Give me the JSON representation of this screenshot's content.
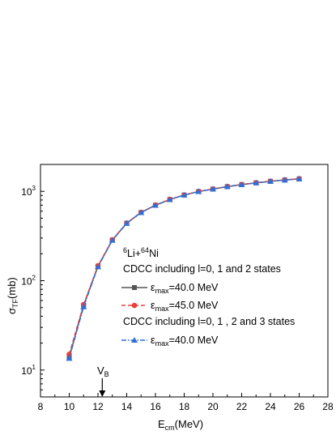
{
  "chart_data": {
    "type": "line",
    "xlabel_main": "E",
    "xlabel_sub": "cm",
    "xlabel_unit": "(MeV)",
    "ylabel_main": "σ",
    "ylabel_sub": "TF",
    "ylabel_unit": "(mb)",
    "xlim": [
      8,
      28
    ],
    "ylim": [
      5,
      2000
    ],
    "yscale": "log",
    "x_ticks": [
      8,
      10,
      12,
      14,
      16,
      18,
      20,
      22,
      24,
      26,
      28
    ],
    "y_ticks": [
      {
        "value": 10,
        "base": "10",
        "exp": "1"
      },
      {
        "value": 100,
        "base": "10",
        "exp": "2"
      },
      {
        "value": 1000,
        "base": "10",
        "exp": "3"
      }
    ],
    "annotation": {
      "label_main": "V",
      "label_sub": "B",
      "x": 12.3
    },
    "legend": {
      "placement": "center-right",
      "title_parts": [
        "6",
        "Li+",
        "64",
        "Ni"
      ],
      "group1": "CDCC including l=0, 1 and 2 states",
      "group2": "CDCC including l=0, 1 , 2 and 3 states",
      "emax_symbol": "ε",
      "emax_sub": "max",
      "entry_values": [
        "=40.0 MeV",
        "=45.0 MeV",
        "=40.0 MeV"
      ]
    },
    "x": [
      10,
      11,
      12,
      13,
      14,
      15,
      16,
      17,
      18,
      19,
      20,
      21,
      22,
      23,
      24,
      25,
      26
    ],
    "series": [
      {
        "color": "#555555",
        "marker": "square",
        "dash": "solid",
        "values": [
          14,
          53,
          145,
          285,
          440,
          580,
          700,
          810,
          910,
          995,
          1060,
          1130,
          1190,
          1245,
          1295,
          1340,
          1380
        ]
      },
      {
        "color": "#e8403a",
        "marker": "circle",
        "dash": "dashed",
        "values": [
          15,
          54,
          147,
          287,
          442,
          582,
          702,
          812,
          912,
          997,
          1062,
          1132,
          1192,
          1247,
          1297,
          1342,
          1382
        ]
      },
      {
        "color": "#2f6fd6",
        "marker": "triangle",
        "dash": "dashdot",
        "values": [
          13.5,
          51,
          143,
          283,
          438,
          578,
          698,
          808,
          908,
          993,
          1058,
          1128,
          1188,
          1243,
          1293,
          1338,
          1378
        ]
      }
    ]
  }
}
